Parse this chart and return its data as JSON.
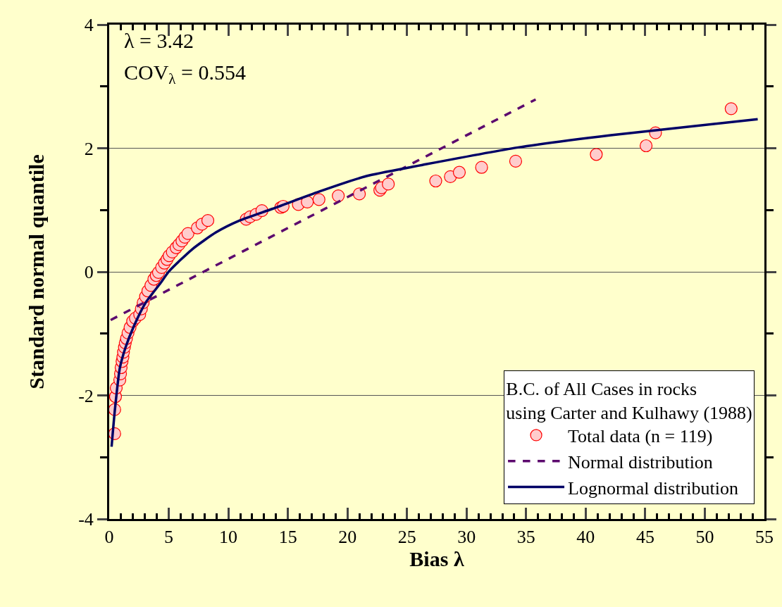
{
  "chart_data": {
    "type": "scatter",
    "xlabel": "Bias λ",
    "ylabel": "Standard normal quantile",
    "legend_title": "B.C. of All Cases in rocks\nusing Carter and Kulhawy (1988)",
    "annotations": [
      "λ = 3.42",
      "COV$_{λ}$ = 0.554"
    ],
    "xlim": [
      0,
      55
    ],
    "xticks": [
      0,
      5,
      10,
      15,
      20,
      25,
      30,
      35,
      40,
      45,
      50,
      55
    ],
    "ylim": [
      -4,
      4
    ],
    "yticks": [
      -4,
      -2,
      0,
      2,
      4
    ],
    "grid": "y",
    "legend": "bottom right",
    "series": [
      {
        "name": "Total data (n = 119)",
        "marker": "circle",
        "color": "#ffcccc",
        "x": [
          0.46,
          0.46,
          0.53,
          0.59,
          0.89,
          0.95,
          1.0,
          1.08,
          1.15,
          1.2,
          1.28,
          1.35,
          1.45,
          1.58,
          1.75,
          1.97,
          2.2,
          2.56,
          2.7,
          2.85,
          3.05,
          3.25,
          3.5,
          3.75,
          3.95,
          4.14,
          4.4,
          4.64,
          4.85,
          5.03,
          5.3,
          5.62,
          5.85,
          6.11,
          6.35,
          6.61,
          7.4,
          7.79,
          8.28,
          11.5,
          11.83,
          12.33,
          12.82,
          14.4,
          14.6,
          15.88,
          16.63,
          17.61,
          19.23,
          21.0,
          22.72,
          22.86,
          23.43,
          27.41,
          28.64,
          29.39,
          31.26,
          34.12,
          40.89,
          45.07,
          45.86,
          52.21
        ],
        "values": [
          -2.62,
          -2.23,
          -2.02,
          -1.88,
          -1.75,
          -1.65,
          -1.55,
          -1.45,
          -1.38,
          -1.3,
          -1.22,
          -1.15,
          -1.08,
          -0.99,
          -0.9,
          -0.8,
          -0.75,
          -0.69,
          -0.6,
          -0.5,
          -0.4,
          -0.31,
          -0.22,
          -0.12,
          -0.06,
          -0.01,
          0.07,
          0.14,
          0.2,
          0.26,
          0.32,
          0.39,
          0.44,
          0.5,
          0.56,
          0.62,
          0.71,
          0.77,
          0.83,
          0.85,
          0.89,
          0.93,
          0.99,
          1.04,
          1.06,
          1.09,
          1.13,
          1.17,
          1.23,
          1.26,
          1.32,
          1.36,
          1.42,
          1.47,
          1.54,
          1.61,
          1.69,
          1.79,
          1.9,
          2.04,
          2.25,
          2.64
        ]
      },
      {
        "name": "Normal distribution",
        "type": "line",
        "line_style": "dashed",
        "color": "#5c0a6e",
        "x": [
          0.12,
          35.8
        ],
        "values": [
          -0.78,
          2.79
        ]
      },
      {
        "name": "Lognormal distribution",
        "type": "line",
        "line_style": "solid",
        "color": "#000066",
        "x": [
          0.2,
          0.49,
          0.89,
          1.38,
          2.07,
          3.06,
          4.24,
          5.03,
          7.0,
          8.98,
          10.95,
          13.71,
          17.65,
          21.6,
          25.5,
          26.3,
          34.22,
          42.11,
          54.44
        ],
        "values": [
          -2.83,
          -2.21,
          -1.56,
          -1.22,
          -0.88,
          -0.5,
          -0.2,
          0.01,
          0.37,
          0.64,
          0.83,
          1.02,
          1.3,
          1.55,
          1.7,
          1.73,
          2.01,
          2.21,
          2.47
        ]
      }
    ]
  }
}
